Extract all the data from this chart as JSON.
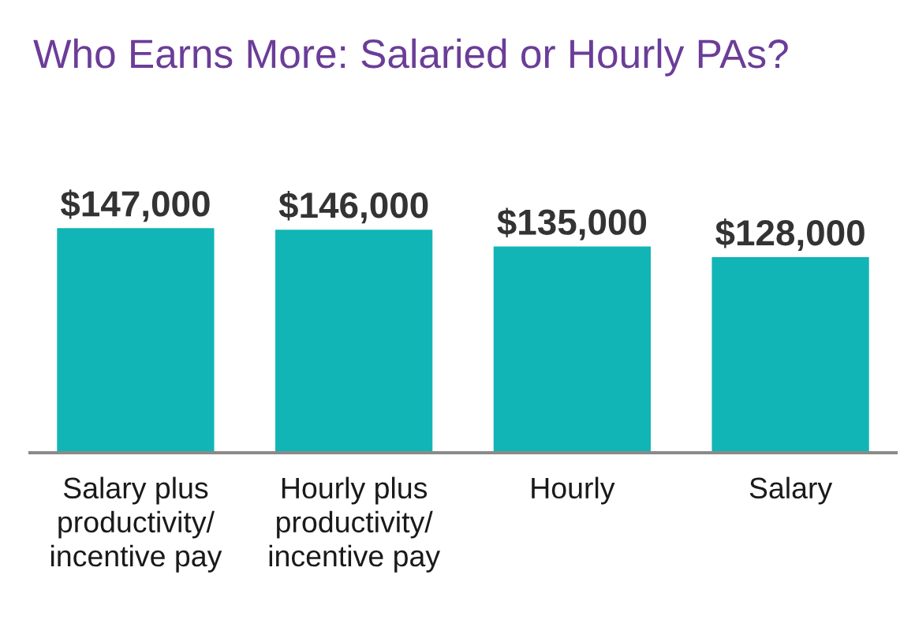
{
  "chart_data": {
    "type": "bar",
    "title": "Who Earns More: Salaried or Hourly PAs?",
    "categories": [
      "Salary plus\nproductivity/\nincentive pay",
      "Hourly plus\nproductivity/\nincentive pay",
      "Hourly",
      "Salary"
    ],
    "values": [
      147000,
      146000,
      135000,
      128000
    ],
    "value_labels": [
      "$147,000",
      "$146,000",
      "$135,000",
      "$128,000"
    ],
    "color": "#11b5b5"
  }
}
